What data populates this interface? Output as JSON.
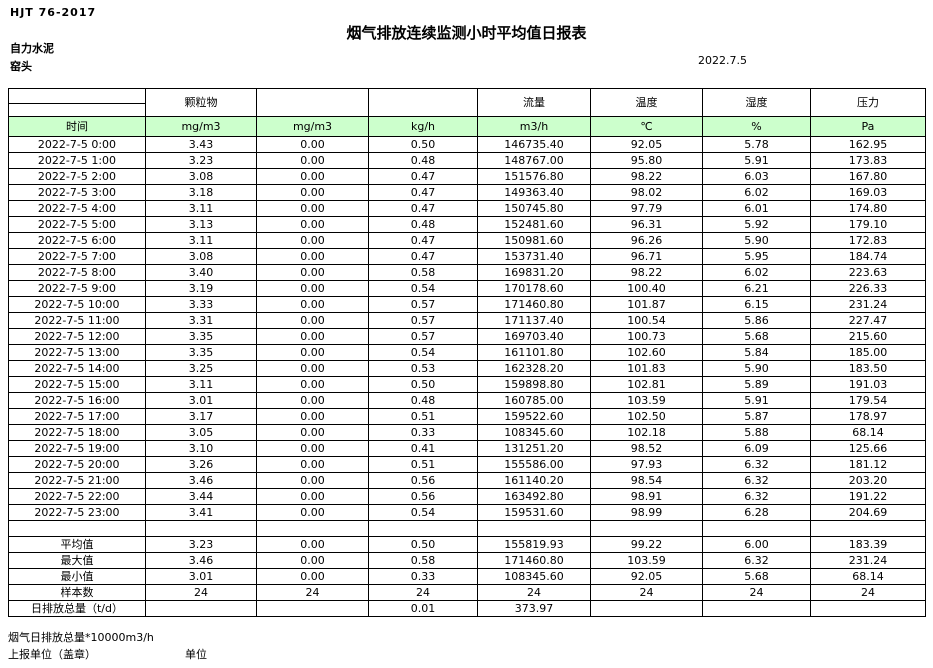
{
  "page": {
    "doc_code": "HJT 76-2017",
    "title": "烟气排放连续监测小时平均值日报表",
    "company": "自力水泥",
    "station": "窑头",
    "date": "2022.7.5"
  },
  "table": {
    "column_keys": [
      "time",
      "pm",
      "pm2",
      "kgh",
      "flow",
      "temp",
      "humidity",
      "pressure"
    ],
    "group_headers": {
      "pm": "颗粒物",
      "col3": "",
      "col4": "",
      "flow": "流量",
      "temp": "温度",
      "humidity": "湿度",
      "pressure": "压力"
    },
    "unit_row": {
      "time": "时间",
      "pm": "mg/m3",
      "pm2": "mg/m3",
      "kgh": "kg/h",
      "flow": "m3/h",
      "temp": "℃",
      "humidity": "%",
      "pressure": "Pa"
    },
    "colors": {
      "unit_row_bg": "#ccffcc",
      "border": "#000000"
    },
    "rows": [
      [
        "2022-7-5 0:00",
        "3.43",
        "0.00",
        "0.50",
        "146735.40",
        "92.05",
        "5.78",
        "162.95"
      ],
      [
        "2022-7-5 1:00",
        "3.23",
        "0.00",
        "0.48",
        "148767.00",
        "95.80",
        "5.91",
        "173.83"
      ],
      [
        "2022-7-5 2:00",
        "3.08",
        "0.00",
        "0.47",
        "151576.80",
        "98.22",
        "6.03",
        "167.80"
      ],
      [
        "2022-7-5 3:00",
        "3.18",
        "0.00",
        "0.47",
        "149363.40",
        "98.02",
        "6.02",
        "169.03"
      ],
      [
        "2022-7-5 4:00",
        "3.11",
        "0.00",
        "0.47",
        "150745.80",
        "97.79",
        "6.01",
        "174.80"
      ],
      [
        "2022-7-5 5:00",
        "3.13",
        "0.00",
        "0.48",
        "152481.60",
        "96.31",
        "5.92",
        "179.10"
      ],
      [
        "2022-7-5 6:00",
        "3.11",
        "0.00",
        "0.47",
        "150981.60",
        "96.26",
        "5.90",
        "172.83"
      ],
      [
        "2022-7-5 7:00",
        "3.08",
        "0.00",
        "0.47",
        "153731.40",
        "96.71",
        "5.95",
        "184.74"
      ],
      [
        "2022-7-5 8:00",
        "3.40",
        "0.00",
        "0.58",
        "169831.20",
        "98.22",
        "6.02",
        "223.63"
      ],
      [
        "2022-7-5 9:00",
        "3.19",
        "0.00",
        "0.54",
        "170178.60",
        "100.40",
        "6.21",
        "226.33"
      ],
      [
        "2022-7-5 10:00",
        "3.33",
        "0.00",
        "0.57",
        "171460.80",
        "101.87",
        "6.15",
        "231.24"
      ],
      [
        "2022-7-5 11:00",
        "3.31",
        "0.00",
        "0.57",
        "171137.40",
        "100.54",
        "5.86",
        "227.47"
      ],
      [
        "2022-7-5 12:00",
        "3.35",
        "0.00",
        "0.57",
        "169703.40",
        "100.73",
        "5.68",
        "215.60"
      ],
      [
        "2022-7-5 13:00",
        "3.35",
        "0.00",
        "0.54",
        "161101.80",
        "102.60",
        "5.84",
        "185.00"
      ],
      [
        "2022-7-5 14:00",
        "3.25",
        "0.00",
        "0.53",
        "162328.20",
        "101.83",
        "5.90",
        "183.50"
      ],
      [
        "2022-7-5 15:00",
        "3.11",
        "0.00",
        "0.50",
        "159898.80",
        "102.81",
        "5.89",
        "191.03"
      ],
      [
        "2022-7-5 16:00",
        "3.01",
        "0.00",
        "0.48",
        "160785.00",
        "103.59",
        "5.91",
        "179.54"
      ],
      [
        "2022-7-5 17:00",
        "3.17",
        "0.00",
        "0.51",
        "159522.60",
        "102.50",
        "5.87",
        "178.97"
      ],
      [
        "2022-7-5 18:00",
        "3.05",
        "0.00",
        "0.33",
        "108345.60",
        "102.18",
        "5.88",
        "68.14"
      ],
      [
        "2022-7-5 19:00",
        "3.10",
        "0.00",
        "0.41",
        "131251.20",
        "98.52",
        "6.09",
        "125.66"
      ],
      [
        "2022-7-5 20:00",
        "3.26",
        "0.00",
        "0.51",
        "155586.00",
        "97.93",
        "6.32",
        "181.12"
      ],
      [
        "2022-7-5 21:00",
        "3.46",
        "0.00",
        "0.56",
        "161140.20",
        "98.54",
        "6.32",
        "203.20"
      ],
      [
        "2022-7-5 22:00",
        "3.44",
        "0.00",
        "0.56",
        "163492.80",
        "98.91",
        "6.32",
        "191.22"
      ],
      [
        "2022-7-5 23:00",
        "3.41",
        "0.00",
        "0.54",
        "159531.60",
        "98.99",
        "6.28",
        "204.69"
      ]
    ],
    "summary_rows": [
      [
        "平均值",
        "3.23",
        "0.00",
        "0.50",
        "155819.93",
        "99.22",
        "6.00",
        "183.39"
      ],
      [
        "最大值",
        "3.46",
        "0.00",
        "0.58",
        "171460.80",
        "103.59",
        "6.32",
        "231.24"
      ],
      [
        "最小值",
        "3.01",
        "0.00",
        "0.33",
        "108345.60",
        "92.05",
        "5.68",
        "68.14"
      ],
      [
        "样本数",
        "24",
        "24",
        "24",
        "24",
        "24",
        "24",
        "24"
      ],
      [
        "日排放总量（t/d）",
        "",
        "",
        "0.01",
        "373.97",
        "",
        "",
        ""
      ]
    ]
  },
  "footer": {
    "note": "烟气日排放总量*10000m3/h",
    "report_unit_label": "上报单位（盖章）",
    "unit_label": "单位"
  }
}
